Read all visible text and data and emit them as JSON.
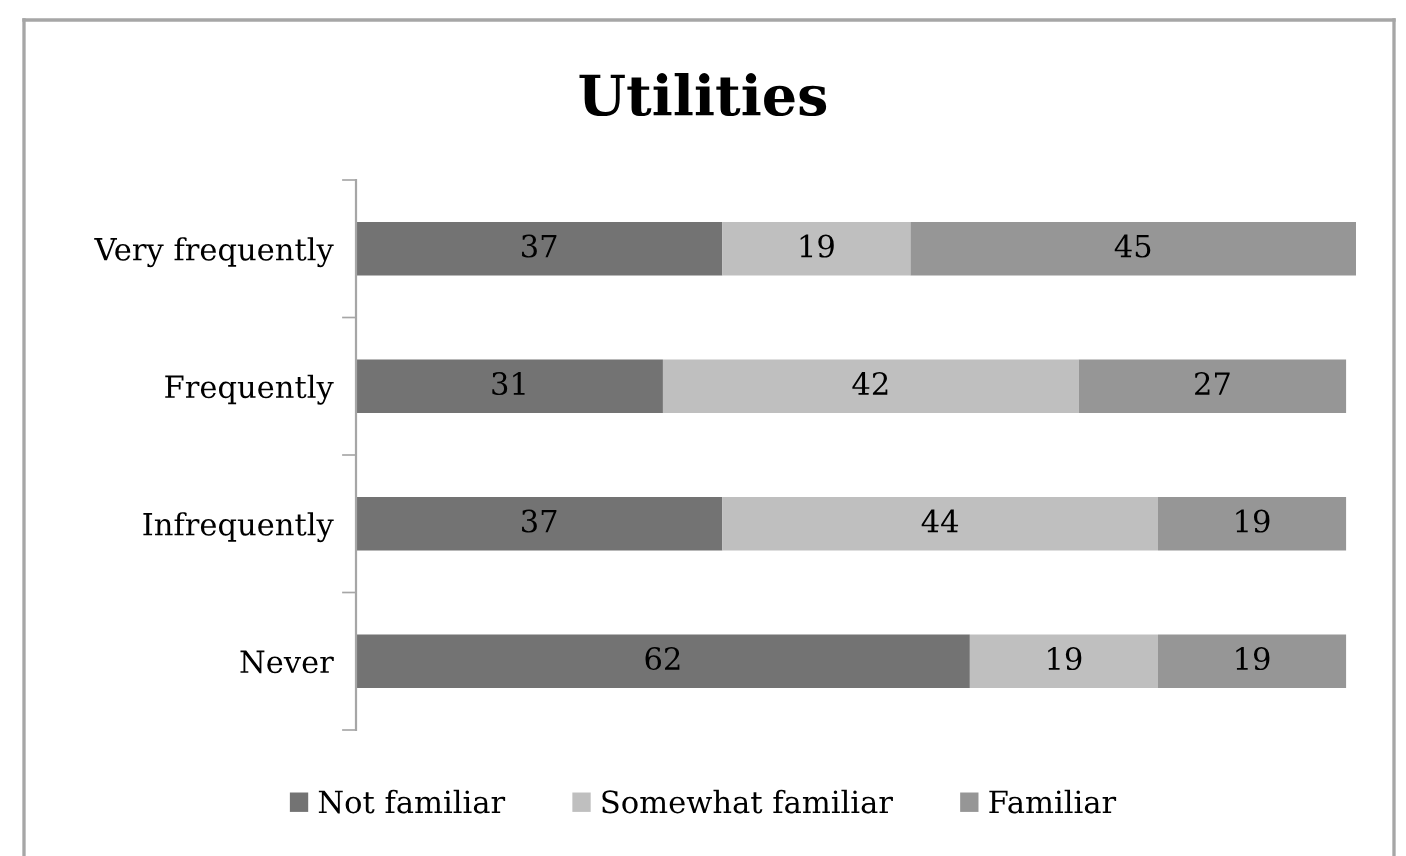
{
  "chart_data": {
    "type": "bar",
    "orientation": "horizontal",
    "stacked": true,
    "title": "Utilities",
    "categories": [
      "Very frequently",
      "Frequently",
      "Infrequently",
      "Never"
    ],
    "series": [
      {
        "name": "Not familiar",
        "color": "#737373",
        "values": [
          37,
          31,
          37,
          62
        ]
      },
      {
        "name": "Somewhat familiar",
        "color": "#bfbfbf",
        "values": [
          19,
          42,
          44,
          19
        ]
      },
      {
        "name": "Familiar",
        "color": "#969696",
        "values": [
          45,
          27,
          19,
          19
        ]
      }
    ],
    "data_labels": true,
    "legend": "bottom",
    "tick_labels": "y"
  }
}
